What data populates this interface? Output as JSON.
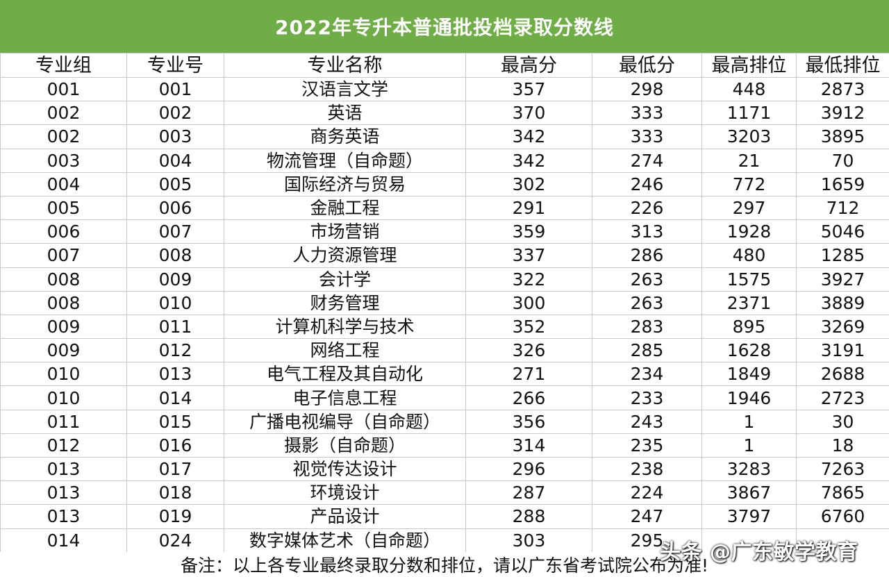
{
  "title": "2022年专升本普通批投档录取分数线",
  "table": {
    "headers": [
      "专业组",
      "专业号",
      "专业名称",
      "最高分",
      "最低分",
      "最高排位",
      "最低排位"
    ],
    "rows": [
      [
        "001",
        "001",
        "汉语言文学",
        "357",
        "298",
        "448",
        "2873"
      ],
      [
        "002",
        "002",
        "英语",
        "370",
        "333",
        "1171",
        "3912"
      ],
      [
        "002",
        "003",
        "商务英语",
        "342",
        "333",
        "3203",
        "3895"
      ],
      [
        "003",
        "004",
        "物流管理（自命题）",
        "342",
        "274",
        "21",
        "70"
      ],
      [
        "004",
        "005",
        "国际经济与贸易",
        "302",
        "246",
        "772",
        "1659"
      ],
      [
        "005",
        "006",
        "金融工程",
        "291",
        "226",
        "297",
        "712"
      ],
      [
        "006",
        "007",
        "市场营销",
        "359",
        "313",
        "1928",
        "5046"
      ],
      [
        "007",
        "008",
        "人力资源管理",
        "337",
        "286",
        "480",
        "1285"
      ],
      [
        "008",
        "009",
        "会计学",
        "322",
        "263",
        "1575",
        "3927"
      ],
      [
        "008",
        "010",
        "财务管理",
        "300",
        "263",
        "2371",
        "3889"
      ],
      [
        "009",
        "011",
        "计算机科学与技术",
        "352",
        "283",
        "895",
        "3269"
      ],
      [
        "009",
        "012",
        "网络工程",
        "326",
        "285",
        "1628",
        "3191"
      ],
      [
        "010",
        "013",
        "电气工程及其自动化",
        "271",
        "234",
        "1849",
        "2688"
      ],
      [
        "010",
        "014",
        "电子信息工程",
        "266",
        "233",
        "1946",
        "2723"
      ],
      [
        "011",
        "015",
        "广播电视编导（自命题）",
        "356",
        "243",
        "1",
        "30"
      ],
      [
        "012",
        "016",
        "摄影（自命题）",
        "314",
        "235",
        "1",
        "18"
      ],
      [
        "013",
        "017",
        "视觉传达设计",
        "296",
        "238",
        "3283",
        "7263"
      ],
      [
        "013",
        "018",
        "环境设计",
        "287",
        "224",
        "3867",
        "7865"
      ],
      [
        "013",
        "019",
        "产品设计",
        "288",
        "247",
        "3797",
        "6760"
      ],
      [
        "014",
        "024",
        "数字媒体艺术（自命题）",
        "303",
        "295",
        "",
        ""
      ]
    ]
  },
  "note": "备注：以上各专业最终录取分数和排位，请以广东省考试院公布为准!",
  "watermark": "头条 @广东敏学教育",
  "colors": {
    "title_bg": "#6fad47",
    "title_text": "#ffffff",
    "grid": "#c9c9c9"
  }
}
